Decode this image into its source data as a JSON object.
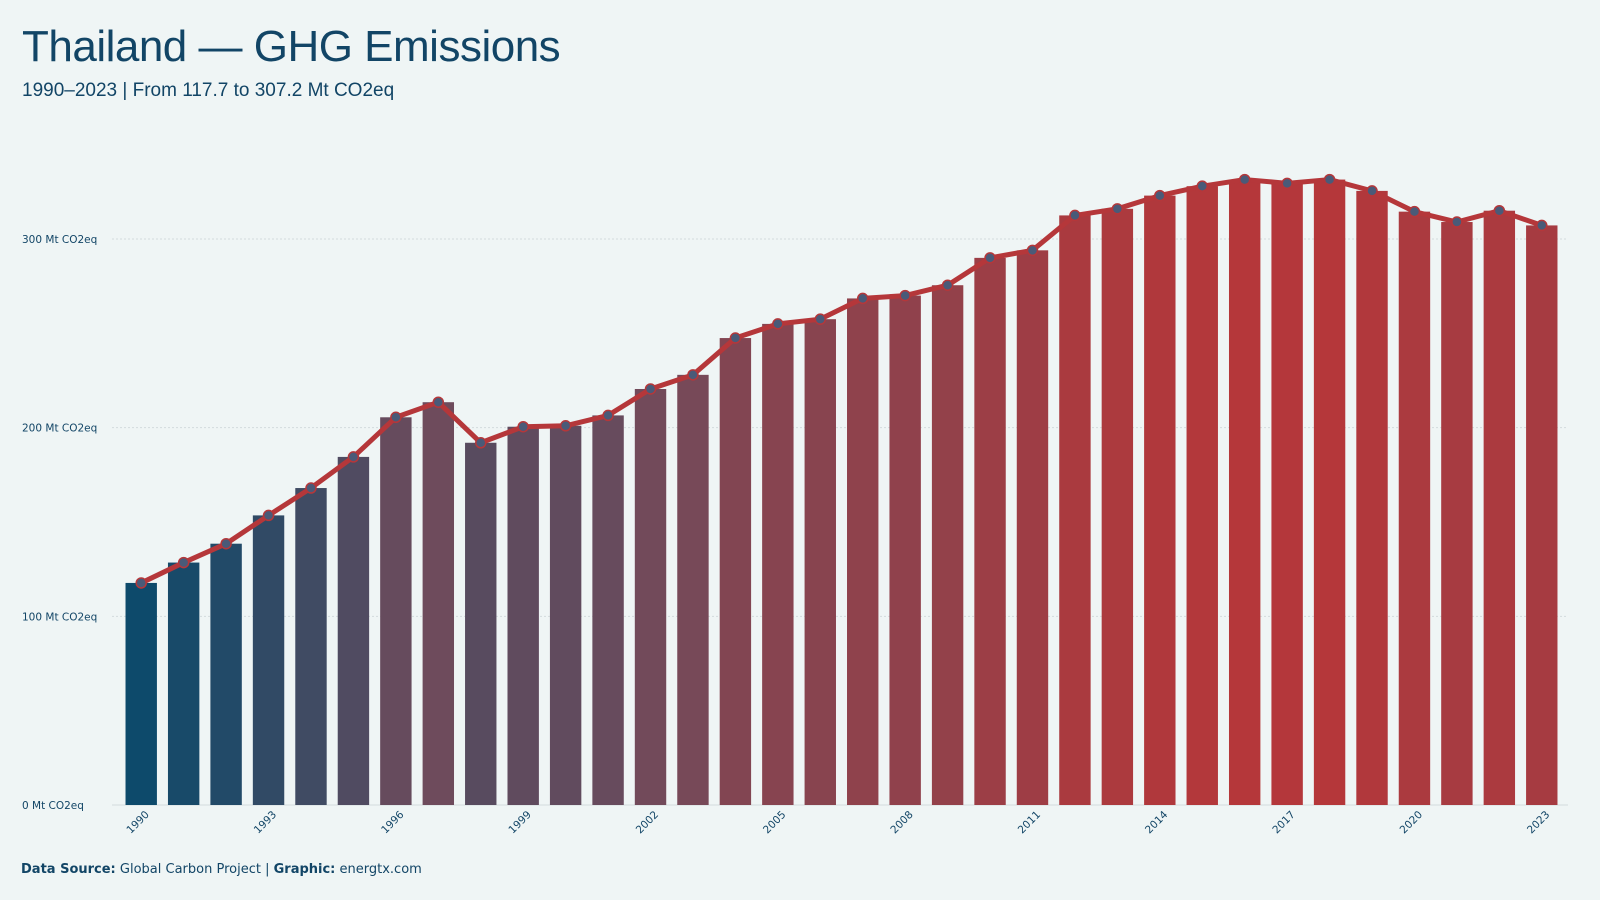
{
  "header": {
    "title": "Thailand — GHG Emissions",
    "subtitle": "1990–2023 | From 117.7 to 307.2 Mt CO2eq"
  },
  "footer": {
    "source_label": "Data Source:",
    "source_value": "Global Carbon Project |",
    "graphic_label": "Graphic:",
    "graphic_value": "energtx.com"
  },
  "colors": {
    "start": "#0d4a6b",
    "mid": "#6e4b5c",
    "end": "#b5373a",
    "line": "#b5373a",
    "marker_fill": "#4a5a78",
    "grid": "#d3dbdd",
    "background": "#eff5f5",
    "bar_band": "#dfe7e9"
  },
  "chart_data": {
    "type": "bar",
    "title": "Thailand — GHG Emissions",
    "x": [
      1990,
      1991,
      1992,
      1993,
      1994,
      1995,
      1996,
      1997,
      1998,
      1999,
      2000,
      2001,
      2002,
      2003,
      2004,
      2005,
      2006,
      2007,
      2008,
      2009,
      2010,
      2011,
      2012,
      2013,
      2014,
      2015,
      2016,
      2017,
      2018,
      2019,
      2020,
      2021,
      2022,
      2023
    ],
    "values": [
      117.7,
      128.5,
      138.5,
      153.5,
      168.0,
      184.5,
      205.5,
      213.5,
      192.0,
      200.5,
      201.0,
      206.5,
      220.5,
      228.0,
      247.5,
      255.0,
      257.5,
      268.5,
      270.0,
      275.5,
      290.0,
      294.0,
      312.5,
      316.0,
      323.0,
      328.0,
      331.5,
      329.5,
      331.5,
      325.5,
      314.5,
      309.0,
      315.0,
      307.2
    ],
    "overlay": "line-with-markers",
    "ylim": [
      0,
      335
    ],
    "yticks": [
      0,
      100,
      200,
      300
    ],
    "ytick_labels": [
      "0 Mt CO2eq",
      "100 Mt CO2eq",
      "200 Mt CO2eq",
      "300 Mt CO2eq"
    ],
    "xtick_labels": [
      "1990",
      "1993",
      "1996",
      "1999",
      "2002",
      "2005",
      "2008",
      "2011",
      "2014",
      "2017",
      "2020",
      "2023"
    ],
    "grid": true
  }
}
